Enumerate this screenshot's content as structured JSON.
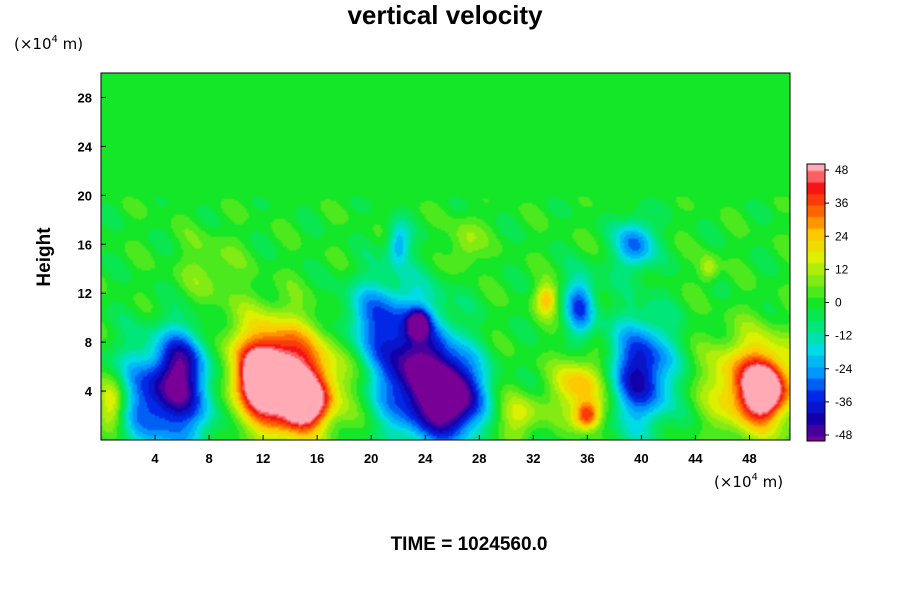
{
  "chart_data": {
    "type": "heatmap",
    "title": "vertical velocity",
    "ylabel": "Height",
    "x_unit_prefix": "(×10",
    "unit_exp": "4",
    "unit_suffix": " m)",
    "y_unit_prefix": "(×10",
    "xlim": [
      0,
      51
    ],
    "ylim": [
      0,
      30
    ],
    "x_ticks": [
      4,
      8,
      12,
      16,
      20,
      24,
      28,
      32,
      36,
      40,
      44,
      48
    ],
    "y_ticks": [
      4,
      8,
      12,
      16,
      20,
      24,
      28
    ],
    "colorbar": {
      "min": -48,
      "max": 48,
      "ticks": [
        48,
        36,
        24,
        12,
        0,
        -12,
        -24,
        -36,
        -48
      ]
    },
    "background_value": 0,
    "turbulent_layer_top": 20,
    "features": [
      {
        "x": 5,
        "y": 3.5,
        "sx": 2.6,
        "sy": 3.0,
        "value": -40
      },
      {
        "x": 6,
        "y": 6.5,
        "sx": 1.2,
        "sy": 2.0,
        "value": -22
      },
      {
        "x": 12,
        "y": 5.5,
        "sx": 2.2,
        "sy": 3.0,
        "value": 36
      },
      {
        "x": 14.5,
        "y": 4.5,
        "sx": 2.4,
        "sy": 2.8,
        "value": 38
      },
      {
        "x": 12,
        "y": 5.0,
        "sx": 0.9,
        "sy": 1.3,
        "value": 48
      },
      {
        "x": 15,
        "y": 3.0,
        "sx": 1.0,
        "sy": 1.2,
        "value": 48
      },
      {
        "x": 23,
        "y": 6.0,
        "sx": 2.0,
        "sy": 3.8,
        "value": -44
      },
      {
        "x": 26,
        "y": 3.5,
        "sx": 1.6,
        "sy": 2.4,
        "value": -54
      },
      {
        "x": 23.5,
        "y": 9.5,
        "sx": 0.5,
        "sy": 0.7,
        "value": -40
      },
      {
        "x": 20,
        "y": 10,
        "sx": 1.6,
        "sy": 2.2,
        "value": -20
      },
      {
        "x": 33,
        "y": 11.5,
        "sx": 0.6,
        "sy": 0.9,
        "value": 24
      },
      {
        "x": 35.5,
        "y": 4.5,
        "sx": 1.3,
        "sy": 1.6,
        "value": 26
      },
      {
        "x": 36,
        "y": 2.0,
        "sx": 0.7,
        "sy": 0.8,
        "value": 36
      },
      {
        "x": 35.5,
        "y": 11,
        "sx": 0.8,
        "sy": 1.8,
        "value": -30
      },
      {
        "x": 40,
        "y": 5.5,
        "sx": 1.6,
        "sy": 3.0,
        "value": -40
      },
      {
        "x": 39.5,
        "y": 16,
        "sx": 1.0,
        "sy": 1.5,
        "value": -28
      },
      {
        "x": 48.5,
        "y": 4.5,
        "sx": 2.2,
        "sy": 2.6,
        "value": 40
      },
      {
        "x": 49,
        "y": 4.0,
        "sx": 0.9,
        "sy": 1.3,
        "value": 48
      },
      {
        "x": 0.8,
        "y": 3.0,
        "sx": 0.8,
        "sy": 1.5,
        "value": 26
      },
      {
        "x": 22,
        "y": 16,
        "sx": 0.6,
        "sy": 1.2,
        "value": -22
      },
      {
        "x": 27,
        "y": 16,
        "sx": 0.8,
        "sy": 1.4,
        "value": 12
      },
      {
        "x": 8,
        "y": 14,
        "sx": 1.5,
        "sy": 2.0,
        "value": 8
      },
      {
        "x": 45,
        "y": 14,
        "sx": 0.5,
        "sy": 0.8,
        "value": 14
      },
      {
        "x": 31,
        "y": 2.0,
        "sx": 1.2,
        "sy": 1.2,
        "value": 16
      }
    ]
  },
  "footer": {
    "time_text": "TIME = 1024560.0"
  }
}
